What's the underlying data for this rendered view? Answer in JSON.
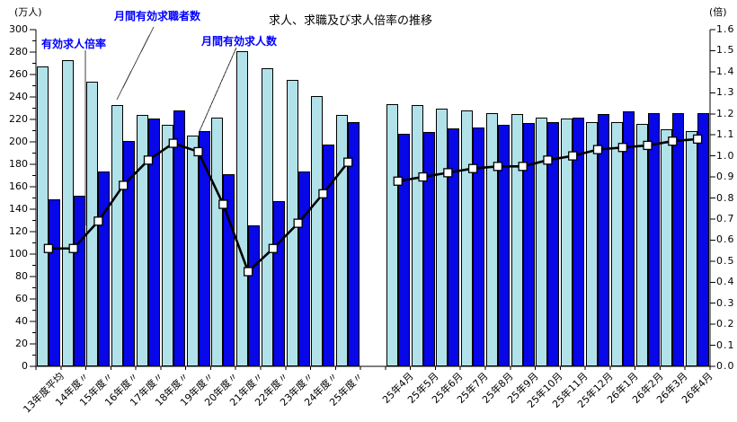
{
  "title": "求人、求職及び求人倍率の推移",
  "axes": {
    "left_unit": "(万人)",
    "right_unit": "(倍)"
  },
  "annotations": {
    "jobseekers_label": "月間有効求職者数",
    "ratio_label": "有効求人倍率",
    "offers_label": "月間有効求人数"
  },
  "colors": {
    "jobseekers_bar": "#B2E2E9",
    "offers_bar": "#0707E8",
    "ratio_line": "#000000",
    "marker_fill": "#FFFFFF",
    "annotation_text": "#0000FF",
    "axis": "#000000"
  },
  "chart_data": {
    "type": "bar",
    "subtype": "grouped-bars-with-line-on-secondary-axis",
    "title": "求人、求職及び求人倍率の推移",
    "left_axis": {
      "unit": "(万人)",
      "min": 0,
      "max": 300,
      "major_step": 20,
      "minor_step": 10
    },
    "right_axis": {
      "unit": "(倍)",
      "min": 0.0,
      "max": 1.6,
      "step": 0.1,
      "decimals": 1
    },
    "legend": [
      "月間有効求職者数",
      "月間有効求人数",
      "有効求人倍率"
    ],
    "grid": "off",
    "sections": [
      {
        "name": "fiscal-year-averages",
        "categories": [
          "13年度平均",
          "14年度〃",
          "15年度〃",
          "16年度〃",
          "17年度〃",
          "18年度〃",
          "19年度〃",
          "20年度〃",
          "21年度〃",
          "22年度〃",
          "23年度〃",
          "24年度〃",
          "25年度〃"
        ],
        "jobseekers": [
          267,
          273,
          254,
          233,
          224,
          215,
          206,
          222,
          281,
          266,
          255,
          241,
          224
        ],
        "offers": [
          149,
          152,
          174,
          201,
          221,
          228,
          210,
          171,
          126,
          147,
          174,
          198,
          218
        ],
        "ratio": [
          0.56,
          0.56,
          0.69,
          0.86,
          0.98,
          1.06,
          1.02,
          0.77,
          0.45,
          0.56,
          0.68,
          0.82,
          0.97
        ]
      },
      {
        "name": "monthly",
        "categories": [
          "25年4月",
          "25年5月",
          "25年6月",
          "25年7月",
          "25年8月",
          "25年9月",
          "25年10月",
          "25年11月",
          "25年12月",
          "26年1月",
          "26年2月",
          "26年3月",
          "26年4月"
        ],
        "jobseekers": [
          234,
          233,
          230,
          228,
          226,
          225,
          222,
          221,
          218,
          218,
          216,
          211,
          210
        ],
        "offers": [
          207,
          209,
          212,
          213,
          215,
          217,
          218,
          222,
          225,
          227,
          226,
          226,
          226
        ],
        "ratio": [
          0.88,
          0.9,
          0.92,
          0.94,
          0.95,
          0.95,
          0.98,
          1.0,
          1.03,
          1.04,
          1.05,
          1.07,
          1.08
        ]
      }
    ]
  }
}
